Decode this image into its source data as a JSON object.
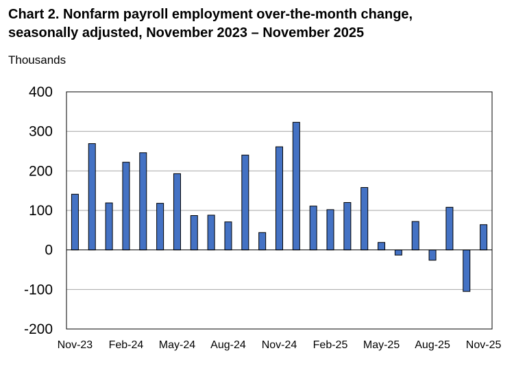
{
  "chart_data": {
    "type": "bar",
    "title_lines": [
      "Chart 2. Nonfarm payroll employment over-the-month change,",
      "seasonally adjusted, November 2023 – November 2025"
    ],
    "ylabel": "Thousands",
    "xlabel": "",
    "ylim": [
      -200,
      400
    ],
    "yticks": [
      400,
      300,
      200,
      100,
      0,
      -100,
      -200
    ],
    "grid": true,
    "legend": "none",
    "bar_color": "#4472C4",
    "categories": [
      "Nov-23",
      "Dec-23",
      "Jan-24",
      "Feb-24",
      "Mar-24",
      "Apr-24",
      "May-24",
      "Jun-24",
      "Jul-24",
      "Aug-24",
      "Sep-24",
      "Oct-24",
      "Nov-24",
      "Dec-24",
      "Jan-25",
      "Feb-25",
      "Mar-25",
      "Apr-25",
      "May-25",
      "Jun-25",
      "Jul-25",
      "Aug-25",
      "Sep-25",
      "Oct-25",
      "Nov-25"
    ],
    "values": [
      141,
      269,
      119,
      222,
      246,
      118,
      193,
      87,
      88,
      71,
      240,
      44,
      261,
      323,
      111,
      102,
      120,
      158,
      19,
      -13,
      72,
      -26,
      108,
      -105,
      64
    ],
    "xtick_labels": [
      "Nov-23",
      "Feb-24",
      "May-24",
      "Aug-24",
      "Nov-24",
      "Feb-25",
      "May-25",
      "Aug-25",
      "Nov-25"
    ]
  }
}
